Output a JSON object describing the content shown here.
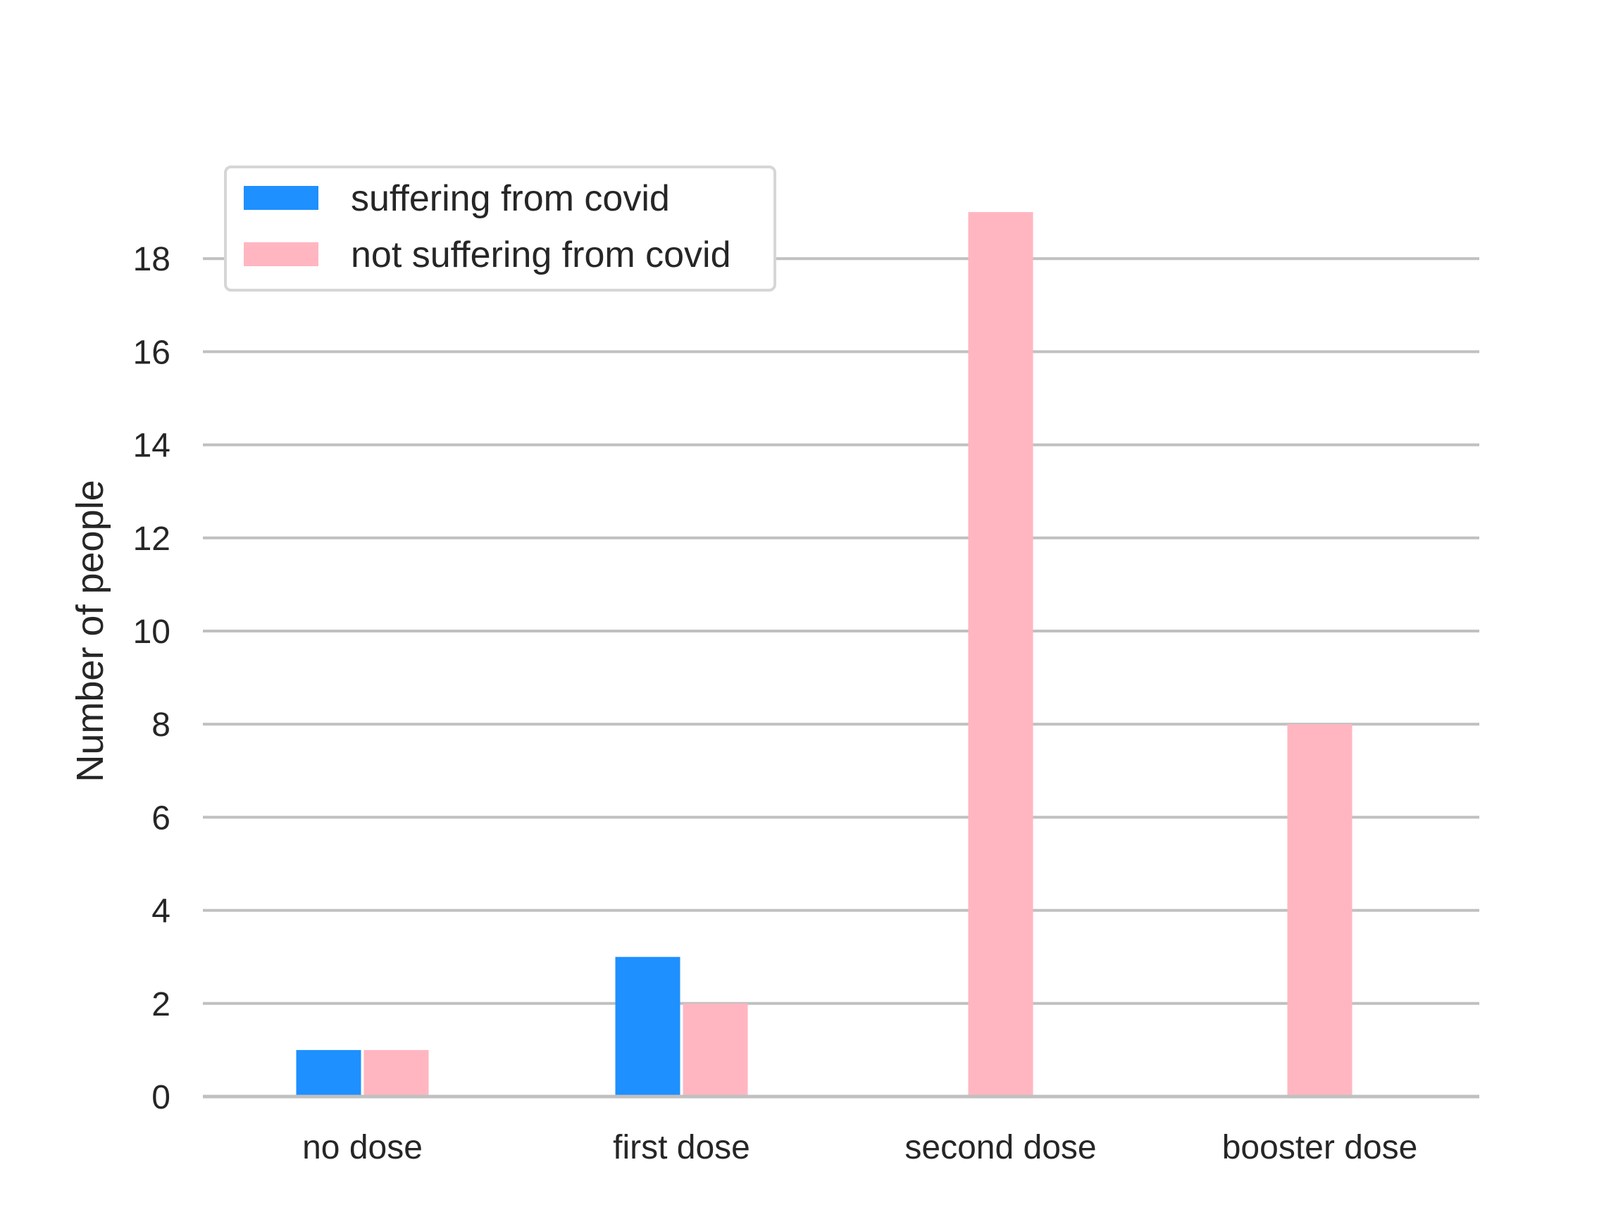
{
  "chart_data": {
    "type": "bar",
    "title": "",
    "xlabel": "",
    "ylabel": "Number of people",
    "categories": [
      "no dose",
      "first dose",
      "second dose",
      "booster dose"
    ],
    "series": [
      {
        "name": "suffering from covid",
        "color": "#1e90ff",
        "values": [
          1,
          3,
          0,
          0
        ]
      },
      {
        "name": "not suffering from covid",
        "color": "#ffb6c1",
        "values": [
          1,
          2,
          19,
          8
        ]
      }
    ],
    "ylim": [
      0,
      20
    ],
    "yticks": [
      0,
      2,
      4,
      6,
      8,
      10,
      12,
      14,
      16,
      18
    ],
    "grid": "horizontal",
    "legend_position": "top-left"
  }
}
